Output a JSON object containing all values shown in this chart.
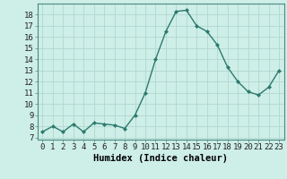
{
  "x": [
    0,
    1,
    2,
    3,
    4,
    5,
    6,
    7,
    8,
    9,
    10,
    11,
    12,
    13,
    14,
    15,
    16,
    17,
    18,
    19,
    20,
    21,
    22,
    23
  ],
  "y": [
    7.5,
    8.0,
    7.5,
    8.2,
    7.5,
    8.3,
    8.2,
    8.1,
    7.8,
    9.0,
    11.0,
    14.0,
    16.5,
    18.3,
    18.4,
    17.0,
    16.5,
    15.3,
    13.3,
    12.0,
    11.1,
    10.8,
    11.5,
    13.0
  ],
  "line_color": "#2d7a6e",
  "marker": "D",
  "marker_size": 2.0,
  "bg_color": "#ceeee8",
  "grid_color": "#b0d8d0",
  "xlabel": "Humidex (Indice chaleur)",
  "ylabel_ticks": [
    7,
    8,
    9,
    10,
    11,
    12,
    13,
    14,
    15,
    16,
    17,
    18
  ],
  "ylim": [
    6.8,
    19.0
  ],
  "xlim": [
    -0.5,
    23.5
  ],
  "xlabel_fontsize": 7.5,
  "tick_fontsize": 6.5,
  "line_width": 1.0
}
